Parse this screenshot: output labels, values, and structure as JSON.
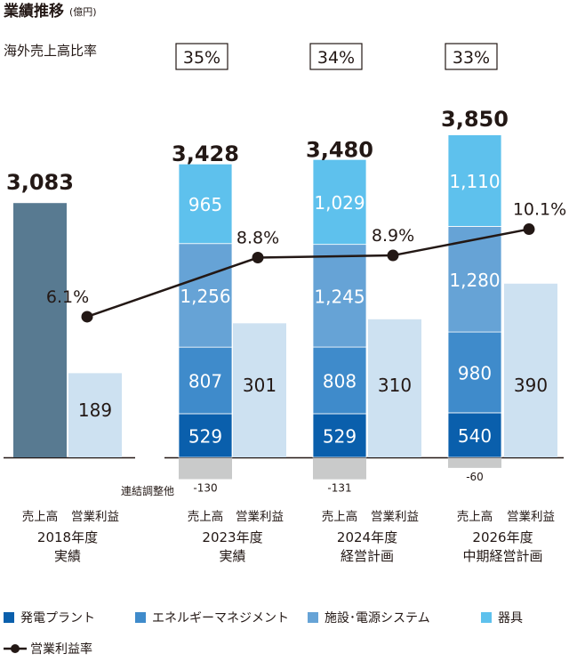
{
  "chart_data": {
    "type": "bar",
    "title": "業績推移",
    "unit": "(億円)",
    "ratio_label": "海外売上高比率",
    "adjust_label": "連結調整他",
    "categories": [
      {
        "year": "2018年度",
        "sub": "実績"
      },
      {
        "year": "2023年度",
        "sub": "実績"
      },
      {
        "year": "2024年度",
        "sub": "経営計画"
      },
      {
        "year": "2026年度",
        "sub": "中期経営計画"
      }
    ],
    "bar_labels": {
      "sales": "売上高",
      "op_profit": "営業利益"
    },
    "overseas_ratio": [
      null,
      "35%",
      "34%",
      "33%"
    ],
    "sales_total": [
      3083,
      3428,
      3480,
      3850
    ],
    "sales_total_labels": [
      "3,083",
      "3,428",
      "3,480",
      "3,850"
    ],
    "series": [
      {
        "name": "発電プラント",
        "color": "#0a5fac",
        "values": [
          null,
          529,
          529,
          540
        ],
        "labels": [
          "",
          "529",
          "529",
          "540"
        ]
      },
      {
        "name": "エネルギーマネジメント",
        "color": "#3f8bcb",
        "values": [
          null,
          807,
          808,
          980
        ],
        "labels": [
          "",
          "807",
          "808",
          "980"
        ]
      },
      {
        "name": "施設･電源システム",
        "color": "#66a3d6",
        "values": [
          null,
          1256,
          1245,
          1280
        ],
        "labels": [
          "",
          "1,256",
          "1,245",
          "1,280"
        ]
      },
      {
        "name": "器具",
        "color": "#5ec1ed",
        "values": [
          null,
          965,
          1029,
          1110
        ],
        "labels": [
          "",
          "965",
          "1,029",
          "1,110"
        ]
      }
    ],
    "adjustments": [
      null,
      -130,
      -131,
      -60
    ],
    "adjustment_labels": [
      "",
      "-130",
      "-131",
      "-60"
    ],
    "operating_profit": [
      189,
      301,
      310,
      390
    ],
    "operating_profit_labels": [
      "189",
      "301",
      "310",
      "390"
    ],
    "margin": [
      6.1,
      8.8,
      8.9,
      10.1
    ],
    "margin_labels": [
      "6.1%",
      "8.8%",
      "8.9%",
      "10.1%"
    ],
    "margin_series_name": "営業利益率",
    "colors": {
      "total_2018": "#587a91",
      "op_profit": "#cde1f1",
      "adjust": "#c9caca",
      "line": "#231815"
    }
  }
}
